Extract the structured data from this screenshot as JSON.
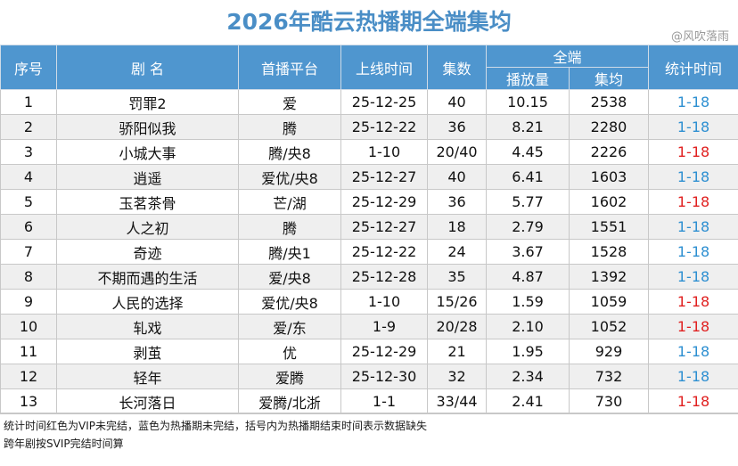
{
  "title": "2026年酷云热播期全端集均",
  "watermark": "@风吹落雨",
  "headers": {
    "rank": "序号",
    "drama": "剧  名",
    "platform": "首播平台",
    "launch": "上线时间",
    "episodes": "集数",
    "allend": "全端",
    "plays": "播放量",
    "avg": "集均",
    "stat": "统计时间"
  },
  "rows": [
    {
      "rank": "1",
      "name": "罚罪2",
      "platform": "爱",
      "launch": "25-12-25",
      "episodes": "40",
      "plays": "10.15",
      "avg": "2538",
      "stat": "1-18",
      "stat_color": "blue"
    },
    {
      "rank": "2",
      "name": "骄阳似我",
      "platform": "腾",
      "launch": "25-12-22",
      "episodes": "36",
      "plays": "8.21",
      "avg": "2280",
      "stat": "1-18",
      "stat_color": "blue"
    },
    {
      "rank": "3",
      "name": "小城大事",
      "platform": "腾/央8",
      "launch": "1-10",
      "episodes": "20/40",
      "plays": "4.45",
      "avg": "2226",
      "stat": "1-18",
      "stat_color": "red"
    },
    {
      "rank": "4",
      "name": "逍遥",
      "platform": "爱优/央8",
      "launch": "25-12-27",
      "episodes": "40",
      "plays": "6.41",
      "avg": "1603",
      "stat": "1-18",
      "stat_color": "blue"
    },
    {
      "rank": "5",
      "name": "玉茗茶骨",
      "platform": "芒/湖",
      "launch": "25-12-29",
      "episodes": "36",
      "plays": "5.77",
      "avg": "1602",
      "stat": "1-18",
      "stat_color": "red"
    },
    {
      "rank": "6",
      "name": "人之初",
      "platform": "腾",
      "launch": "25-12-27",
      "episodes": "18",
      "plays": "2.79",
      "avg": "1551",
      "stat": "1-18",
      "stat_color": "blue"
    },
    {
      "rank": "7",
      "name": "奇迹",
      "platform": "腾/央1",
      "launch": "25-12-22",
      "episodes": "24",
      "plays": "3.67",
      "avg": "1528",
      "stat": "1-18",
      "stat_color": "blue"
    },
    {
      "rank": "8",
      "name": "不期而遇的生活",
      "platform": "爱/央8",
      "launch": "25-12-28",
      "episodes": "35",
      "plays": "4.87",
      "avg": "1392",
      "stat": "1-18",
      "stat_color": "blue"
    },
    {
      "rank": "9",
      "name": "人民的选择",
      "platform": "爱优/央8",
      "launch": "1-10",
      "episodes": "15/26",
      "plays": "1.59",
      "avg": "1059",
      "stat": "1-18",
      "stat_color": "red"
    },
    {
      "rank": "10",
      "name": "轧戏",
      "platform": "爱/东",
      "launch": "1-9",
      "episodes": "20/28",
      "plays": "2.10",
      "avg": "1052",
      "stat": "1-18",
      "stat_color": "red"
    },
    {
      "rank": "11",
      "name": "剥茧",
      "platform": "优",
      "launch": "25-12-29",
      "episodes": "21",
      "plays": "1.95",
      "avg": "929",
      "stat": "1-18",
      "stat_color": "blue"
    },
    {
      "rank": "12",
      "name": "轻年",
      "platform": "爱腾",
      "launch": "25-12-30",
      "episodes": "32",
      "plays": "2.34",
      "avg": "732",
      "stat": "1-18",
      "stat_color": "blue"
    },
    {
      "rank": "13",
      "name": "长河落日",
      "platform": "爱腾/北浙",
      "launch": "1-1",
      "episodes": "33/44",
      "plays": "2.41",
      "avg": "730",
      "stat": "1-18",
      "stat_color": "red"
    }
  ],
  "colors": {
    "header_bg": "#4f96cf",
    "title": "#4a8ec6",
    "stat_blue": "#2d8fd1",
    "stat_red": "#e02020",
    "stripe": "#efefef"
  },
  "notes": [
    "统计时间红色为VIP未完结，蓝色为热播期未完结，括号内为热播期结束时间表示数据缺失",
    "跨年剧按SVIP完结时间算"
  ]
}
